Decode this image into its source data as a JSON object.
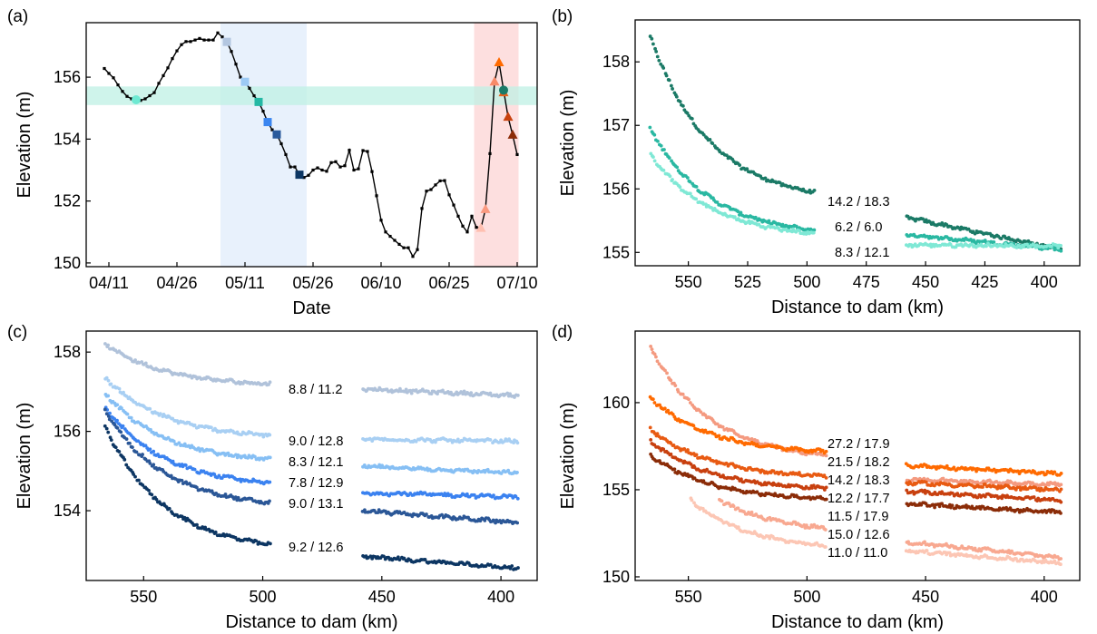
{
  "chart_data": [
    {
      "id": "a",
      "type": "line",
      "panel_label": "(a)",
      "xlabel": "Date",
      "ylabel": "Elevation (m)",
      "x_unit": "days since 04/11",
      "xlim": [
        -5,
        94.4
      ],
      "ylim": [
        149.88,
        157.76
      ],
      "xticks": [
        {
          "v": 0,
          "label": "04/11"
        },
        {
          "v": 15,
          "label": "04/26"
        },
        {
          "v": 30,
          "label": "05/11"
        },
        {
          "v": 45,
          "label": "05/26"
        },
        {
          "v": 60,
          "label": "06/10"
        },
        {
          "v": 75,
          "label": "06/25"
        },
        {
          "v": 90,
          "label": "07/10"
        }
      ],
      "yticks": [
        150,
        152,
        154,
        156
      ],
      "spans": [
        {
          "axis": "x",
          "from": 24.6,
          "to": 43.6,
          "color": "#e4effb"
        },
        {
          "axis": "x",
          "from": 80.5,
          "to": 90.3,
          "color": "#fdd9d9"
        },
        {
          "axis": "y",
          "from": 155.1,
          "to": 155.7,
          "color": "#bff0e4"
        }
      ],
      "series": {
        "x": [
          -1,
          0,
          1,
          2,
          3,
          4,
          5,
          6,
          7,
          8,
          9,
          10,
          11,
          12,
          13,
          14,
          15,
          16,
          17,
          18,
          19,
          20,
          21,
          22,
          23,
          24,
          25,
          26,
          27,
          28,
          29,
          30,
          31,
          32,
          33,
          34,
          35,
          36,
          37,
          38,
          39,
          40,
          41,
          42,
          43,
          44,
          45,
          46,
          47,
          48,
          49,
          50,
          51,
          52,
          53,
          54,
          55,
          56,
          57,
          58,
          59,
          60,
          61,
          62,
          63,
          64,
          65,
          66,
          67,
          68,
          69,
          70,
          71,
          72,
          73,
          74,
          75,
          76,
          77,
          78,
          79,
          80,
          81,
          82,
          83,
          84,
          85,
          86,
          87,
          88,
          89,
          90
        ],
        "y": [
          156.28,
          156.12,
          155.98,
          155.75,
          155.54,
          155.38,
          155.3,
          155.27,
          155.25,
          155.3,
          155.4,
          155.5,
          155.8,
          156.05,
          156.3,
          156.6,
          156.85,
          157.05,
          157.15,
          157.15,
          157.2,
          157.25,
          157.2,
          157.2,
          157.2,
          157.43,
          157.3,
          157.14,
          156.83,
          156.42,
          156.0,
          155.85,
          155.64,
          155.4,
          155.2,
          154.9,
          154.55,
          154.3,
          154.15,
          153.85,
          153.5,
          153.1,
          153.1,
          152.85,
          152.76,
          152.83,
          153.0,
          153.07,
          153.0,
          152.96,
          153.24,
          153.27,
          153.1,
          153.14,
          153.64,
          153.0,
          153.04,
          153.63,
          153.6,
          152.95,
          152.17,
          151.38,
          151.0,
          150.86,
          150.73,
          150.6,
          150.49,
          150.49,
          150.21,
          150.43,
          151.76,
          152.32,
          152.37,
          152.52,
          152.65,
          152.66,
          152.2,
          151.87,
          151.51,
          151.19,
          151.0,
          151.51,
          151.15,
          151.12,
          151.73,
          153.53,
          155.85,
          156.47,
          155.58,
          154.71,
          154.13,
          153.5
        ],
        "color": "#000000"
      },
      "markers": [
        {
          "x": 6,
          "y": 155.27,
          "shape": "circle",
          "color": "#6ee9d2"
        },
        {
          "x": 26,
          "y": 157.14,
          "shape": "square",
          "color": "#b3c6e0"
        },
        {
          "x": 30,
          "y": 155.85,
          "shape": "square",
          "color": "#9ccaf5"
        },
        {
          "x": 33,
          "y": 155.2,
          "shape": "square",
          "color": "#24b8a4"
        },
        {
          "x": 35,
          "y": 154.55,
          "shape": "square",
          "color": "#3b86f0"
        },
        {
          "x": 37,
          "y": 154.15,
          "shape": "square",
          "color": "#2a5a9c"
        },
        {
          "x": 42,
          "y": 152.85,
          "shape": "square",
          "color": "#0c3663"
        },
        {
          "x": 82,
          "y": 151.12,
          "shape": "triangle",
          "color": "#ffbfb0"
        },
        {
          "x": 83,
          "y": 151.73,
          "shape": "triangle",
          "color": "#fa9a80"
        },
        {
          "x": 85,
          "y": 155.85,
          "shape": "triangle",
          "color": "#f88a68"
        },
        {
          "x": 86,
          "y": 156.47,
          "shape": "triangle",
          "color": "#ff6a00"
        },
        {
          "x": 87,
          "y": 155.5,
          "shape": "triangle",
          "color": "#e8601a"
        },
        {
          "x": 87,
          "y": 155.58,
          "shape": "circle",
          "color": "#1b7a68"
        },
        {
          "x": 88,
          "y": 154.71,
          "shape": "triangle",
          "color": "#c8420f"
        },
        {
          "x": 89,
          "y": 154.13,
          "shape": "triangle",
          "color": "#8c2c08"
        }
      ]
    },
    {
      "id": "b",
      "type": "scatter",
      "panel_label": "(b)",
      "xlabel": "Distance to dam (km)",
      "ylabel": "Elevation (m)",
      "xlim": [
        595,
        385
      ],
      "ylim": [
        154.79,
        158.66
      ],
      "xticks": [
        550,
        525,
        500,
        475,
        450,
        425,
        400
      ],
      "yticks": [
        155,
        156,
        157,
        158
      ],
      "series": [
        {
          "label": "14.2 / 18.3",
          "color": "#1b7a66",
          "left": {
            "from": 566,
            "to": 497,
            "start": 158.4,
            "end": 155.95
          },
          "right": {
            "from": 458,
            "to": 393,
            "start": 155.55,
            "end": 155.05
          }
        },
        {
          "label": "6.2 / 6.0",
          "color": "#2ab8a2",
          "left": {
            "from": 566,
            "to": 497,
            "start": 156.95,
            "end": 155.35
          },
          "right": {
            "from": 458,
            "to": 393,
            "start": 155.28,
            "end": 155.05
          }
        },
        {
          "label": "8.3 / 12.1",
          "color": "#7fe8d5",
          "left": {
            "from": 566,
            "to": 497,
            "start": 156.55,
            "end": 155.3
          },
          "right": {
            "from": 458,
            "to": 393,
            "start": 155.12,
            "end": 155.1
          }
        }
      ]
    },
    {
      "id": "c",
      "type": "scatter",
      "panel_label": "(c)",
      "xlabel": "Distance to dam (km)",
      "ylabel": "Elevation (m)",
      "xlim": [
        574.1,
        384.8
      ],
      "ylim": [
        152.24,
        158.53
      ],
      "xticks": [
        550,
        500,
        450,
        400
      ],
      "yticks": [
        154,
        156,
        158
      ],
      "series": [
        {
          "label": "8.8 / 11.2",
          "color": "#b0c2da",
          "left": {
            "from": 566,
            "to": 497,
            "start": 158.2,
            "end": 157.2
          },
          "right": {
            "from": 458,
            "to": 393,
            "start": 157.07,
            "end": 156.9
          }
        },
        {
          "label": "9.0 / 12.8",
          "color": "#a8cff3",
          "left": {
            "from": 566,
            "to": 497,
            "start": 157.35,
            "end": 155.9
          },
          "right": {
            "from": 458,
            "to": 393,
            "start": 155.8,
            "end": 155.75
          }
        },
        {
          "label": "8.3 / 12.1",
          "color": "#86bff4",
          "left": {
            "from": 566,
            "to": 497,
            "start": 156.95,
            "end": 155.3
          },
          "right": {
            "from": 458,
            "to": 393,
            "start": 155.12,
            "end": 154.95
          }
        },
        {
          "label": "7.8 / 12.9",
          "color": "#3b82f0",
          "left": {
            "from": 566,
            "to": 497,
            "start": 156.6,
            "end": 154.7
          },
          "right": {
            "from": 458,
            "to": 393,
            "start": 154.45,
            "end": 154.35
          }
        },
        {
          "label": "9.0 / 13.1",
          "color": "#2b5797",
          "left": {
            "from": 566,
            "to": 497,
            "start": 156.5,
            "end": 154.2
          },
          "right": {
            "from": 458,
            "to": 393,
            "start": 154.0,
            "end": 153.7
          }
        },
        {
          "label": "9.2 / 12.6",
          "color": "#0d3663",
          "left": {
            "from": 566,
            "to": 497,
            "start": 156.1,
            "end": 153.15
          },
          "right": {
            "from": 458,
            "to": 393,
            "start": 152.85,
            "end": 152.55
          }
        }
      ]
    },
    {
      "id": "d",
      "type": "scatter",
      "panel_label": "(d)",
      "xlabel": "Distance to dam (km)",
      "ylabel": "Elevation (m)",
      "xlim": [
        595,
        385
      ],
      "ylim": [
        149.79,
        164.11
      ],
      "xticks": [
        550,
        500,
        450,
        400
      ],
      "yticks": [
        150,
        155,
        160
      ],
      "series": [
        {
          "label": "27.2 / 17.9",
          "color": "#f49a80",
          "left": {
            "from": 566,
            "to": 492,
            "start": 163.2,
            "end": 157.0
          },
          "right": {
            "from": 458,
            "to": 393,
            "start": 155.6,
            "end": 155.3
          }
        },
        {
          "label": "21.5 / 18.2",
          "color": "#ff6a00",
          "left": {
            "from": 566,
            "to": 492,
            "start": 160.3,
            "end": 157.2
          },
          "right": {
            "from": 458,
            "to": 393,
            "start": 156.4,
            "end": 155.9
          }
        },
        {
          "label": "14.2 / 18.3",
          "color": "#e85a12",
          "left": {
            "from": 566,
            "to": 492,
            "start": 158.5,
            "end": 155.8
          },
          "right": {
            "from": 458,
            "to": 393,
            "start": 155.4,
            "end": 155.0
          }
        },
        {
          "label": "12.2 / 17.7",
          "color": "#c8400f",
          "left": {
            "from": 566,
            "to": 492,
            "start": 157.8,
            "end": 155.1
          },
          "right": {
            "from": 458,
            "to": 393,
            "start": 154.9,
            "end": 154.4
          }
        },
        {
          "label": "11.5 / 17.9",
          "color": "#8b2c08",
          "left": {
            "from": 566,
            "to": 492,
            "start": 157.0,
            "end": 154.5
          },
          "right": {
            "from": 458,
            "to": 393,
            "start": 154.2,
            "end": 153.7
          }
        },
        {
          "label": "15.0 / 12.6",
          "color": "#f8a890",
          "left": {
            "from": 537,
            "to": 492,
            "start": 154.4,
            "end": 152.8
          },
          "right": {
            "from": 458,
            "to": 393,
            "start": 152.0,
            "end": 151.1
          }
        },
        {
          "label": "11.0 / 11.0",
          "color": "#fcc6b4",
          "left": {
            "from": 549,
            "to": 492,
            "start": 154.4,
            "end": 151.8
          },
          "right": {
            "from": 458,
            "to": 393,
            "start": 151.5,
            "end": 150.8
          }
        }
      ]
    }
  ]
}
